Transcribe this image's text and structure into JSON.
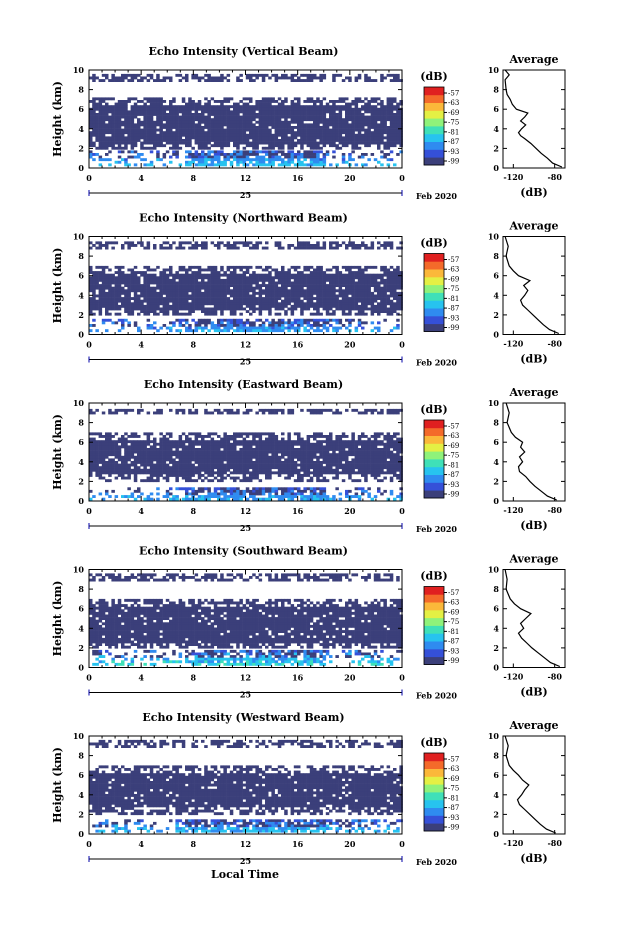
{
  "figure": {
    "xlabel": "Local Time",
    "date_suffix": "Feb 2020",
    "colorbar_unit": "(dB)",
    "avg_title": "Average",
    "avg_xlabel": "(dB)",
    "colormap": [
      "#3b3f7a",
      "#3550d8",
      "#2f8bf0",
      "#27c3ef",
      "#3fe0b8",
      "#8ff27a",
      "#e4f044",
      "#fbb83a",
      "#f46a2a",
      "#e02020"
    ]
  },
  "chart_data": [
    {
      "type": "heatmap",
      "title": "Echo Intensity (Vertical Beam)",
      "ylabel": "Height (km)",
      "x_ticks": [
        "0",
        "4",
        "8",
        "12",
        "16",
        "20",
        "0"
      ],
      "y_ticks": [
        "0",
        "2",
        "4",
        "6",
        "8",
        "10"
      ],
      "xlim": [
        0,
        24
      ],
      "ylim": [
        0,
        10
      ],
      "date_tick": "25",
      "colorbar_ticks": [
        "-57",
        "-63",
        "-69",
        "-75",
        "-81",
        "-87",
        "-93",
        "-99"
      ],
      "layers": [
        {
          "label": "low",
          "y": [
            0.3,
            1.8
          ],
          "level": 0.35
        },
        {
          "label": "main",
          "y": [
            2.0,
            7.2
          ],
          "level": 0.0
        },
        {
          "label": "upper",
          "y": [
            9.0,
            9.6
          ],
          "level": 0.0
        }
      ],
      "average_profile": {
        "x_ticks": [
          "-120",
          "-80"
        ],
        "y_ticks": [
          "0",
          "2",
          "4",
          "6",
          "8",
          "10"
        ],
        "xlim": [
          -130,
          -70
        ],
        "ylim": [
          0,
          10
        ],
        "height_km": [
          0.1,
          0.5,
          1.0,
          1.5,
          2.0,
          2.5,
          3.0,
          3.3,
          3.6,
          4.0,
          4.4,
          4.8,
          5.2,
          5.6,
          6.0,
          6.5,
          7.0,
          7.5,
          8.0,
          9.0,
          9.5,
          10.0
        ],
        "db": [
          -73,
          -82,
          -87,
          -93,
          -98,
          -103,
          -109,
          -113,
          -115,
          -112,
          -108,
          -113,
          -109,
          -106,
          -117,
          -121,
          -123,
          -126,
          -127,
          -128,
          -124,
          -128
        ]
      }
    },
    {
      "type": "heatmap",
      "title": "Echo Intensity (Northward Beam)",
      "ylabel": "Height (km)",
      "x_ticks": [
        "0",
        "4",
        "8",
        "12",
        "16",
        "20",
        "0"
      ],
      "y_ticks": [
        "0",
        "2",
        "4",
        "6",
        "8",
        "10"
      ],
      "xlim": [
        0,
        24
      ],
      "ylim": [
        0,
        10
      ],
      "date_tick": "25",
      "colorbar_ticks": [
        "-57",
        "-63",
        "-69",
        "-75",
        "-81",
        "-87",
        "-93",
        "-99"
      ],
      "layers": [
        {
          "label": "low",
          "y": [
            0.3,
            1.6
          ],
          "level": 0.3
        },
        {
          "label": "main",
          "y": [
            2.0,
            7.0
          ],
          "level": 0.0
        },
        {
          "label": "upper",
          "y": [
            8.8,
            9.5
          ],
          "level": 0.0
        }
      ],
      "average_profile": {
        "x_ticks": [
          "-120",
          "-80"
        ],
        "y_ticks": [
          "0",
          "2",
          "4",
          "6",
          "8",
          "10"
        ],
        "xlim": [
          -130,
          -70
        ],
        "ylim": [
          0,
          10
        ],
        "height_km": [
          0.1,
          0.5,
          1.0,
          1.5,
          2.0,
          2.5,
          3.0,
          3.5,
          4.0,
          4.5,
          5.0,
          5.5,
          6.0,
          6.5,
          7.0,
          8.0,
          9.0,
          10.0
        ],
        "db": [
          -76,
          -85,
          -91,
          -96,
          -101,
          -106,
          -111,
          -113,
          -109,
          -106,
          -110,
          -104,
          -115,
          -120,
          -124,
          -127,
          -125,
          -128
        ]
      }
    },
    {
      "type": "heatmap",
      "title": "Echo Intensity (Eastward Beam)",
      "ylabel": "Height (km)",
      "x_ticks": [
        "0",
        "4",
        "8",
        "12",
        "16",
        "20",
        "0"
      ],
      "y_ticks": [
        "0",
        "2",
        "4",
        "6",
        "8",
        "10"
      ],
      "xlim": [
        0,
        24
      ],
      "ylim": [
        0,
        10
      ],
      "date_tick": "25",
      "colorbar_ticks": [
        "-57",
        "-63",
        "-69",
        "-75",
        "-81",
        "-87",
        "-93",
        "-99"
      ],
      "layers": [
        {
          "label": "low",
          "y": [
            0.3,
            1.4
          ],
          "level": 0.3
        },
        {
          "label": "main",
          "y": [
            2.2,
            7.0
          ],
          "level": 0.0
        },
        {
          "label": "upper",
          "y": [
            8.9,
            9.4
          ],
          "level": 0.0
        }
      ],
      "average_profile": {
        "x_ticks": [
          "-120",
          "-80"
        ],
        "y_ticks": [
          "0",
          "2",
          "4",
          "6",
          "8",
          "10"
        ],
        "xlim": [
          -130,
          -70
        ],
        "ylim": [
          0,
          10
        ],
        "height_km": [
          0.1,
          0.5,
          1.0,
          1.5,
          2.0,
          2.5,
          3.0,
          3.5,
          4.0,
          4.5,
          5.0,
          5.5,
          6.0,
          6.5,
          7.0,
          8.0,
          9.0,
          10.0
        ],
        "db": [
          -78,
          -87,
          -93,
          -99,
          -104,
          -108,
          -114,
          -115,
          -111,
          -114,
          -109,
          -113,
          -111,
          -118,
          -122,
          -126,
          -124,
          -127
        ]
      }
    },
    {
      "type": "heatmap",
      "title": "Echo Intensity (Southward Beam)",
      "ylabel": "Height (km)",
      "x_ticks": [
        "0",
        "4",
        "8",
        "12",
        "16",
        "20",
        "0"
      ],
      "y_ticks": [
        "0",
        "2",
        "4",
        "6",
        "8",
        "10"
      ],
      "xlim": [
        0,
        24
      ],
      "ylim": [
        0,
        10
      ],
      "date_tick": "25",
      "colorbar_ticks": [
        "-57",
        "-63",
        "-69",
        "-75",
        "-81",
        "-87",
        "-93",
        "-99"
      ],
      "layers": [
        {
          "label": "low",
          "y": [
            0.3,
            1.8
          ],
          "level": 0.45
        },
        {
          "label": "main",
          "y": [
            2.0,
            7.0
          ],
          "level": 0.0
        },
        {
          "label": "upper",
          "y": [
            8.9,
            9.6
          ],
          "level": 0.0
        }
      ],
      "average_profile": {
        "x_ticks": [
          "-120",
          "-80"
        ],
        "y_ticks": [
          "0",
          "2",
          "4",
          "6",
          "8",
          "10"
        ],
        "xlim": [
          -130,
          -70
        ],
        "ylim": [
          0,
          10
        ],
        "height_km": [
          0.1,
          0.5,
          1.0,
          1.5,
          2.0,
          2.5,
          3.0,
          3.5,
          4.0,
          4.5,
          5.0,
          5.5,
          6.0,
          6.5,
          7.0,
          8.0,
          9.0,
          10.0
        ],
        "db": [
          -75,
          -84,
          -90,
          -96,
          -102,
          -107,
          -112,
          -115,
          -110,
          -113,
          -108,
          -103,
          -113,
          -119,
          -123,
          -127,
          -126,
          -128
        ]
      }
    },
    {
      "type": "heatmap",
      "title": "Echo Intensity (Westward Beam)",
      "ylabel": "Height (km)",
      "x_ticks": [
        "0",
        "4",
        "8",
        "12",
        "16",
        "20",
        "0"
      ],
      "y_ticks": [
        "0",
        "2",
        "4",
        "6",
        "8",
        "10"
      ],
      "xlim": [
        0,
        24
      ],
      "ylim": [
        0,
        10
      ],
      "date_tick": "25",
      "colorbar_ticks": [
        "-57",
        "-63",
        "-69",
        "-75",
        "-81",
        "-87",
        "-93",
        "-99"
      ],
      "layers": [
        {
          "label": "low",
          "y": [
            0.3,
            1.5
          ],
          "level": 0.35
        },
        {
          "label": "main",
          "y": [
            2.2,
            7.0
          ],
          "level": 0.0
        },
        {
          "label": "upper",
          "y": [
            8.9,
            9.6
          ],
          "level": 0.0
        }
      ],
      "average_profile": {
        "x_ticks": [
          "-120",
          "-80"
        ],
        "y_ticks": [
          "0",
          "2",
          "4",
          "6",
          "8",
          "10"
        ],
        "xlim": [
          -130,
          -70
        ],
        "ylim": [
          0,
          10
        ],
        "height_km": [
          0.1,
          0.5,
          1.0,
          1.5,
          2.0,
          2.5,
          3.0,
          3.5,
          4.0,
          4.5,
          5.0,
          5.5,
          6.0,
          6.5,
          7.0,
          8.0,
          9.0,
          10.0
        ],
        "db": [
          -79,
          -88,
          -94,
          -99,
          -104,
          -109,
          -114,
          -116,
          -112,
          -109,
          -105,
          -111,
          -115,
          -120,
          -124,
          -127,
          -125,
          -128
        ]
      }
    }
  ]
}
